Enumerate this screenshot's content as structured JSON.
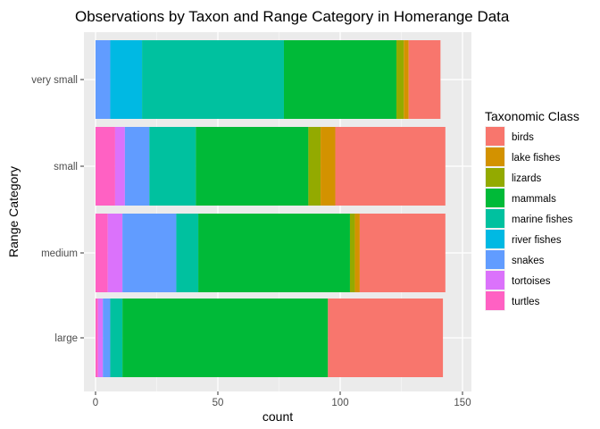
{
  "chart_data": {
    "type": "bar",
    "orientation": "horizontal",
    "stacked": true,
    "title": "Observations by Taxon and Range Category in Homerange Data",
    "xlabel": "count",
    "ylabel": "Range Category",
    "xlim": [
      0,
      150
    ],
    "x_ticks": [
      0,
      50,
      100,
      150
    ],
    "grid": true,
    "legend_title": "Taxonomic Class",
    "legend_position": "right",
    "categories": [
      "large",
      "medium",
      "small",
      "very small"
    ],
    "series": [
      {
        "name": "birds",
        "color": "#F8766D",
        "values": [
          47,
          35,
          45,
          13
        ]
      },
      {
        "name": "lake fishes",
        "color": "#D39200",
        "values": [
          0,
          2,
          6,
          2
        ]
      },
      {
        "name": "lizards",
        "color": "#93AA00",
        "values": [
          0,
          2,
          5,
          3
        ]
      },
      {
        "name": "mammals",
        "color": "#00BA38",
        "values": [
          84,
          62,
          46,
          46
        ]
      },
      {
        "name": "marine fishes",
        "color": "#00C19F",
        "values": [
          5,
          9,
          19,
          58
        ]
      },
      {
        "name": "river fishes",
        "color": "#00B9E3",
        "values": [
          0,
          0,
          0,
          13
        ]
      },
      {
        "name": "snakes",
        "color": "#619CFF",
        "values": [
          3,
          22,
          10,
          6
        ]
      },
      {
        "name": "tortoises",
        "color": "#DB72FB",
        "values": [
          2,
          6,
          4,
          0
        ]
      },
      {
        "name": "turtles",
        "color": "#FF61C3",
        "values": [
          1,
          5,
          8,
          0
        ]
      }
    ]
  }
}
